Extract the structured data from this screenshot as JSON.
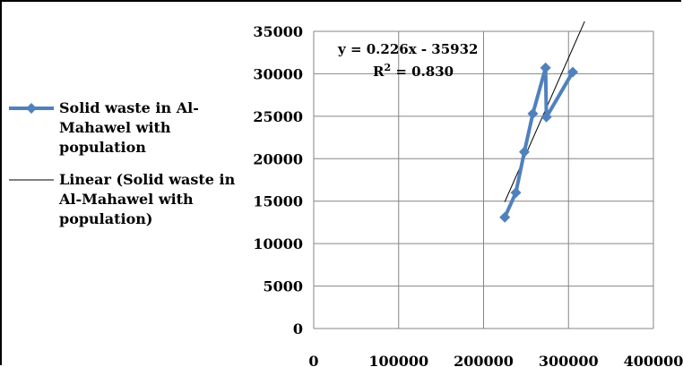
{
  "chart_data": {
    "type": "scatter",
    "title": "",
    "xlabel": "",
    "ylabel": "",
    "xlim": [
      0,
      400000
    ],
    "ylim": [
      0,
      35000
    ],
    "x_ticks": [
      "0",
      "100000",
      "200000",
      "300000",
      "400000"
    ],
    "y_ticks": [
      "0",
      "5000",
      "10000",
      "15000",
      "20000",
      "25000",
      "30000",
      "35000"
    ],
    "grid": true,
    "legend_position": "left",
    "series": [
      {
        "name": "Solid waste in Al-Mahawel with population",
        "color": "#4f81bd",
        "marker": "diamond",
        "points": [
          {
            "x": 225000,
            "y": 13100
          },
          {
            "x": 238000,
            "y": 16000
          },
          {
            "x": 248000,
            "y": 20800
          },
          {
            "x": 258000,
            "y": 25300
          },
          {
            "x": 273000,
            "y": 30700
          },
          {
            "x": 274000,
            "y": 24900
          },
          {
            "x": 305000,
            "y": 30200
          }
        ]
      }
    ],
    "trendline": {
      "name": "Linear (Solid waste in Al-Mahawel with population)",
      "color": "#000000",
      "slope": 0.226,
      "intercept": -35932,
      "x_range": [
        225000,
        305000
      ],
      "equation": "y = 0.226x - 35932",
      "r_squared_label": "R",
      "r_squared_sup": "2",
      "r_squared_value": " = 0.830"
    }
  }
}
